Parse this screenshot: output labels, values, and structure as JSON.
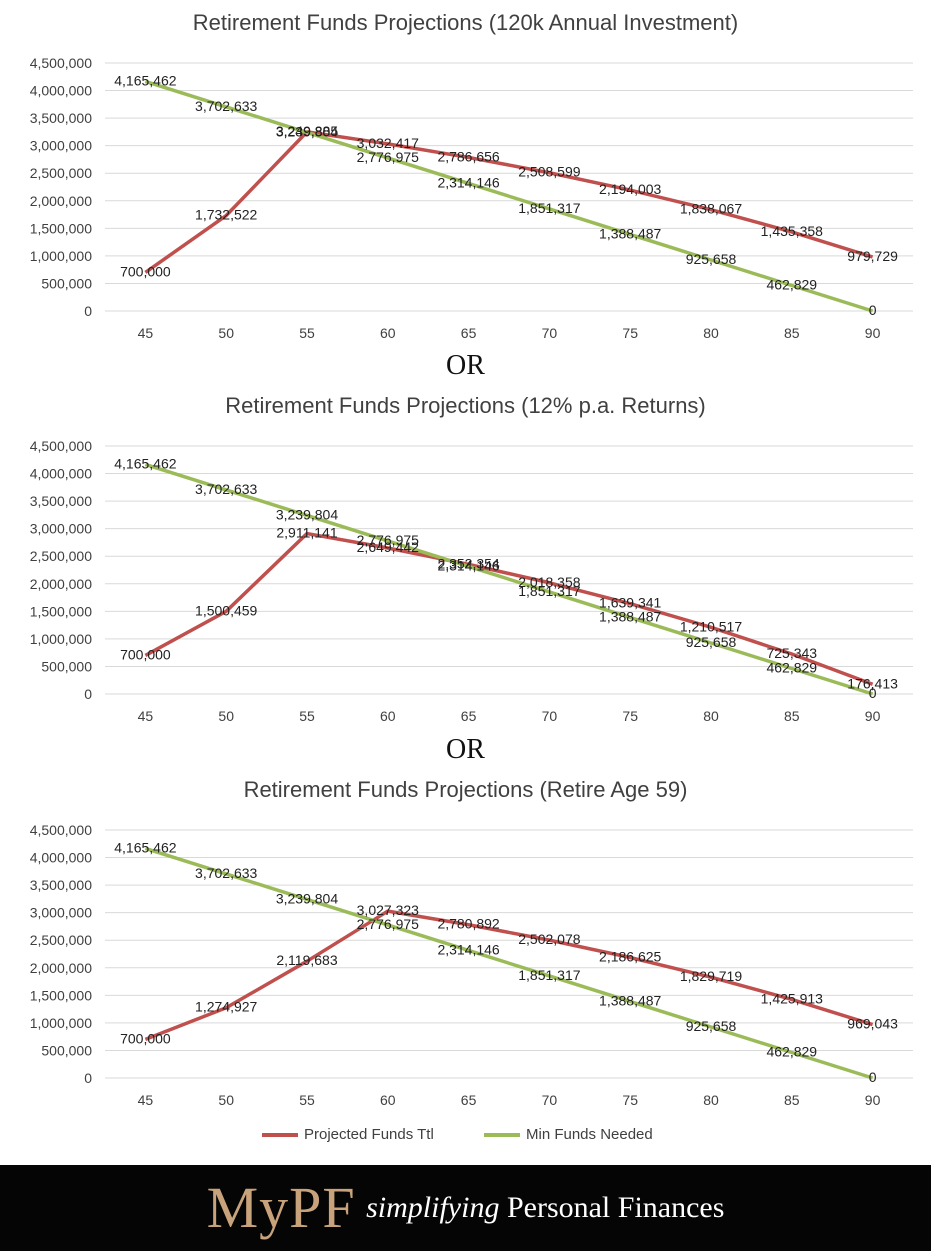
{
  "chart_data": [
    {
      "type": "line",
      "title": "Retirement Funds Projections (120k Annual Investment)",
      "xlabel": "",
      "ylabel": "",
      "ylim": [
        0,
        4500000
      ],
      "y_ticks": [
        "4,500,000",
        "4,000,000",
        "3,500,000",
        "3,000,000",
        "2,500,000",
        "2,000,000",
        "1,500,000",
        "1,000,000",
        "500,000",
        "0"
      ],
      "categories": [
        "45",
        "50",
        "55",
        "60",
        "65",
        "70",
        "75",
        "80",
        "85",
        "90"
      ],
      "grid": true,
      "series": [
        {
          "name": "Projected Funds Ttl",
          "color": "#c0504d",
          "values": [
            700000,
            1732522,
            3249885,
            3032417,
            2786656,
            2508599,
            2194003,
            1838067,
            1435358,
            979729
          ],
          "labels": [
            "700,000",
            "1,732,522",
            "3,249,885",
            "3,032,417",
            "2,786,656",
            "2,508,599",
            "2,194,003",
            "1,838,067",
            "1,435,358",
            "979,729"
          ]
        },
        {
          "name": "Min Funds Needed",
          "color": "#9bbb59",
          "values": [
            4165462,
            3702633,
            3239804,
            2776975,
            2314146,
            1851317,
            1388487,
            925658,
            462829,
            0
          ],
          "labels": [
            "4,165,462",
            "3,702,633",
            "3,239,804",
            "2,776,975",
            "2,314,146",
            "1,851,317",
            "1,388,487",
            "925,658",
            "462,829",
            "0"
          ]
        }
      ]
    },
    {
      "type": "line",
      "title": "Retirement Funds Projections (12% p.a. Returns)",
      "xlabel": "",
      "ylabel": "",
      "ylim": [
        0,
        4500000
      ],
      "y_ticks": [
        "4,500,000",
        "4,000,000",
        "3,500,000",
        "3,000,000",
        "2,500,000",
        "2,000,000",
        "1,500,000",
        "1,000,000",
        "500,000",
        "0"
      ],
      "categories": [
        "45",
        "50",
        "55",
        "60",
        "65",
        "70",
        "75",
        "80",
        "85",
        "90"
      ],
      "grid": true,
      "series": [
        {
          "name": "Projected Funds Ttl",
          "color": "#c0504d",
          "values": [
            700000,
            1500459,
            2911141,
            2649442,
            2352354,
            2018358,
            1639341,
            1210517,
            725343,
            176413
          ],
          "labels": [
            "700,000",
            "1,500,459",
            "2,911,141",
            "2,649,442",
            "2,352,354",
            "2,018,358",
            "1,639,341",
            "1,210,517",
            "725,343",
            "176,413"
          ]
        },
        {
          "name": "Min Funds Needed",
          "color": "#9bbb59",
          "values": [
            4165462,
            3702633,
            3239804,
            2776975,
            2314146,
            1851317,
            1388487,
            925658,
            462829,
            0
          ],
          "labels": [
            "4,165,462",
            "3,702,633",
            "3,239,804",
            "2,776,975",
            "2,314,146",
            "1,851,317",
            "1,388,487",
            "925,658",
            "462,829",
            "0"
          ]
        }
      ]
    },
    {
      "type": "line",
      "title": "Retirement Funds Projections (Retire Age 59)",
      "xlabel": "",
      "ylabel": "",
      "ylim": [
        0,
        4500000
      ],
      "y_ticks": [
        "4,500,000",
        "4,000,000",
        "3,500,000",
        "3,000,000",
        "2,500,000",
        "2,000,000",
        "1,500,000",
        "1,000,000",
        "500,000",
        "0"
      ],
      "categories": [
        "45",
        "50",
        "55",
        "60",
        "65",
        "70",
        "75",
        "80",
        "85",
        "90"
      ],
      "grid": true,
      "series": [
        {
          "name": "Projected Funds Ttl",
          "color": "#c0504d",
          "values": [
            700000,
            1274927,
            2119683,
            3027323,
            2780892,
            2502078,
            2186625,
            1829719,
            1425913,
            969043
          ],
          "labels": [
            "700,000",
            "1,274,927",
            "2,119,683",
            "3,027,323",
            "2,780,892",
            "2,502,078",
            "2,186,625",
            "1,829,719",
            "1,425,913",
            "969,043"
          ]
        },
        {
          "name": "Min Funds Needed",
          "color": "#9bbb59",
          "values": [
            4165462,
            3702633,
            3239804,
            2776975,
            2314146,
            1851317,
            1388487,
            925658,
            462829,
            0
          ],
          "labels": [
            "4,165,462",
            "3,702,633",
            "3,239,804",
            "2,776,975",
            "2,314,146",
            "1,851,317",
            "1,388,487",
            "925,658",
            "462,829",
            "0"
          ]
        }
      ]
    }
  ],
  "separators": [
    "OR",
    "OR"
  ],
  "legend": {
    "placement": "bottom",
    "items": [
      {
        "label": "Projected Funds Ttl",
        "color": "#c0504d"
      },
      {
        "label": "Min Funds Needed",
        "color": "#9bbb59"
      }
    ]
  },
  "footer": {
    "logo": "MyPF",
    "tagline_italic": "simplifying",
    "tagline_rest": " Personal Finances"
  },
  "colors": {
    "gridline": "#d9d9d9",
    "axis_text": "#404040",
    "footer_bg": "#050505",
    "logo": "#c8a27a"
  }
}
